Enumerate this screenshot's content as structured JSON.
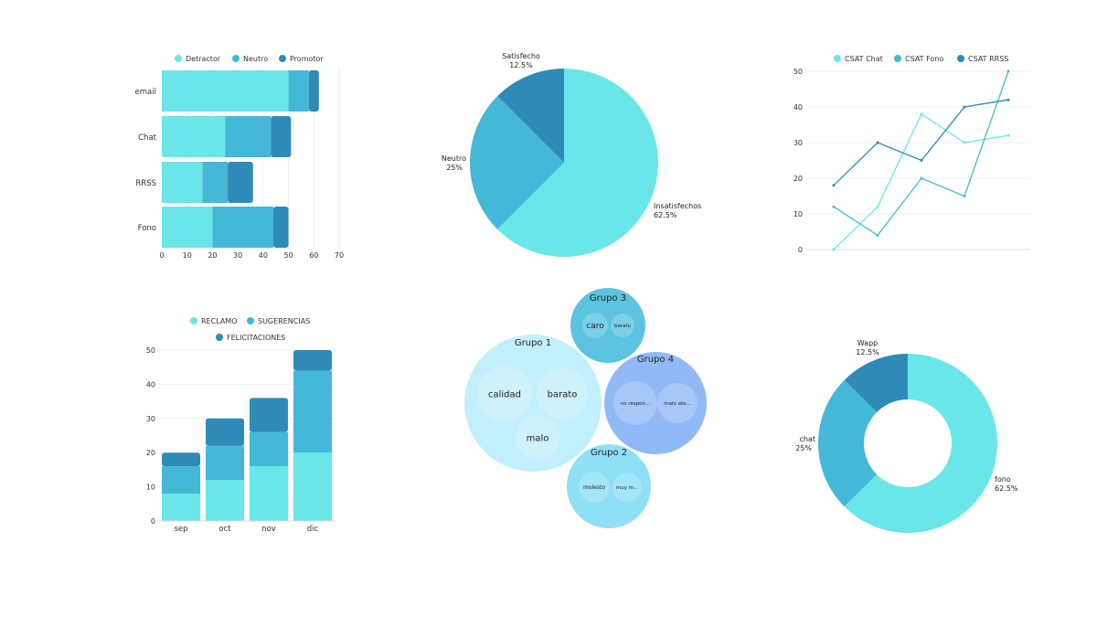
{
  "colors": {
    "light": "#6ae6e8",
    "mid": "#44b8d6",
    "dark": "#2e8bb8"
  },
  "chart_data": [
    {
      "id": "nps_por_canal",
      "type": "bar",
      "orientation": "horizontal",
      "stacked": true,
      "categories": [
        "email",
        "Chat",
        "RRSS",
        "Fono"
      ],
      "series": [
        {
          "name": "Detractor",
          "values": [
            50,
            25,
            16,
            20
          ]
        },
        {
          "name": "Neutro",
          "values": [
            8,
            18,
            10,
            24
          ]
        },
        {
          "name": "Promotor",
          "values": [
            4,
            8,
            10,
            6
          ]
        }
      ],
      "xlim": [
        0,
        70
      ],
      "xticks": [
        "0",
        "10",
        "20",
        "30",
        "40",
        "50",
        "60",
        "70"
      ],
      "legend": "top"
    },
    {
      "id": "satisfaccion",
      "type": "pie",
      "slices": [
        {
          "label": "Insatisfechos",
          "value": 62.5,
          "pct": "62.5%"
        },
        {
          "label": "Neutro",
          "value": 25,
          "pct": "25%"
        },
        {
          "label": "Satisfecho",
          "value": 12.5,
          "pct": "12.5%"
        }
      ]
    },
    {
      "id": "csat",
      "type": "line",
      "x": [
        1,
        2,
        3,
        4,
        5
      ],
      "series": [
        {
          "name": "CSAT Chat",
          "values": [
            0,
            12,
            38,
            30,
            32
          ]
        },
        {
          "name": "CSAT Fono",
          "values": [
            12,
            4,
            20,
            15,
            50
          ]
        },
        {
          "name": "CSAT RRSS",
          "values": [
            18,
            30,
            25,
            40,
            42
          ]
        }
      ],
      "ylim": [
        0,
        50
      ],
      "yticks": [
        "0",
        "10",
        "20",
        "30",
        "40",
        "50"
      ],
      "legend": "top"
    },
    {
      "id": "tipos_mensaje",
      "type": "bar",
      "stacked": true,
      "categories": [
        "sep",
        "oct",
        "nov",
        "dic"
      ],
      "series": [
        {
          "name": "RECLAMO",
          "values": [
            8,
            12,
            16,
            20
          ]
        },
        {
          "name": "SUGERENCIAS",
          "values": [
            8,
            10,
            10,
            24
          ]
        },
        {
          "name": "FELICITACIONES",
          "values": [
            4,
            8,
            10,
            6
          ]
        }
      ],
      "ylim": [
        0,
        50
      ],
      "yticks": [
        "0",
        "10",
        "20",
        "30",
        "40",
        "50"
      ],
      "legend": "top"
    },
    {
      "id": "grupos",
      "type": "bubble",
      "groups": [
        {
          "name": "Grupo 1",
          "color": "#c2effc",
          "items": [
            "calidad",
            "barato",
            "malo"
          ]
        },
        {
          "name": "Grupo 3",
          "color": "#5cc3e0",
          "items": [
            "caro",
            "barato"
          ]
        },
        {
          "name": "Grupo 4",
          "color": "#91b9f7",
          "items": [
            "no respon...",
            "malo ate..."
          ]
        },
        {
          "name": "Grupo 2",
          "color": "#8fdff7",
          "items": [
            "molesto",
            "muy m..."
          ]
        }
      ]
    },
    {
      "id": "canales",
      "type": "pie",
      "donut": true,
      "slices": [
        {
          "label": "fono",
          "value": 62.5,
          "pct": "62.5%"
        },
        {
          "label": "chat",
          "value": 25,
          "pct": "25%"
        },
        {
          "label": "Wapp",
          "value": 12.5,
          "pct": "12.5%"
        }
      ]
    }
  ]
}
